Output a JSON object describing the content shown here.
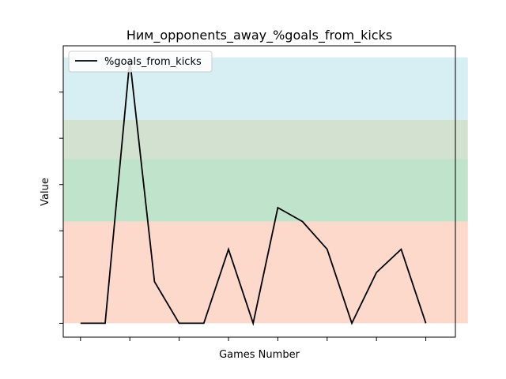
{
  "chart_data": {
    "type": "line",
    "title": "Ним_opponents_away_%goals_from_kicks",
    "xlabel": "Games Number",
    "ylabel": "Value",
    "x": [
      1,
      2,
      3,
      4,
      5,
      6,
      7,
      8,
      9,
      10,
      11,
      12,
      13,
      14,
      15,
      16
    ],
    "series": [
      {
        "name": "%goals_from_kicks",
        "values": [
          0,
          0,
          57,
          9,
          0,
          0,
          16,
          0,
          25,
          22,
          16,
          0,
          11,
          16,
          0,
          null
        ],
        "color": "#000000"
      }
    ],
    "xlim": [
      0.3,
      16.2
    ],
    "ylim": [
      -3,
      60
    ],
    "bands": [
      {
        "from": 0,
        "to": 22,
        "color": "#fdd9cc"
      },
      {
        "from": 22,
        "to": 35.5,
        "color": "#c0e4cb"
      },
      {
        "from": 35.5,
        "to": 44,
        "color": "#d3e1d0"
      },
      {
        "from": 44,
        "to": 57.5,
        "color": "#d7eef2"
      }
    ],
    "x_ticks": [
      1,
      3,
      5,
      7,
      9,
      11,
      13,
      15
    ],
    "y_ticks": [
      0,
      10,
      20,
      30,
      40,
      50
    ],
    "tick_labels_visible": false,
    "grid": false,
    "legend_position": "top-left"
  }
}
